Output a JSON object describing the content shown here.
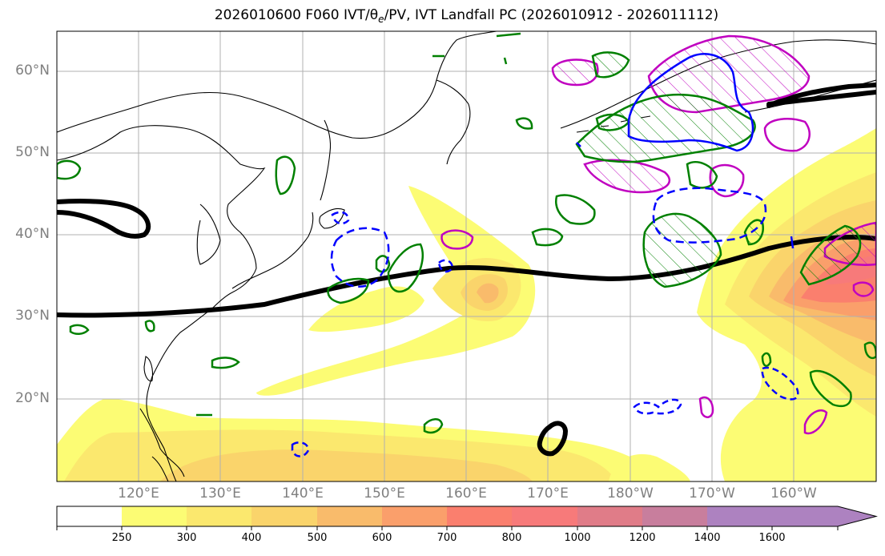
{
  "figure": {
    "title_main": "2026010600 F060 IVT/",
    "title_theta": "θ",
    "title_theta_sub": "e",
    "title_rest": "/PV, IVT Landfall PC (2026010912 - 2026011112)"
  },
  "map": {
    "lat_labels": [
      "60°N",
      "50°N",
      "40°N",
      "30°N",
      "20°N"
    ],
    "lon_labels": [
      "120°E",
      "130°E",
      "140°E",
      "150°E",
      "160°E",
      "170°E",
      "180°W",
      "170°W",
      "160°W"
    ]
  },
  "colorbar": {
    "labels": [
      "250",
      "300",
      "400",
      "500",
      "600",
      "700",
      "800",
      "1000",
      "1200",
      "1400",
      "1600"
    ],
    "colors": [
      "#ffffff",
      "#fcfc74",
      "#fbe86e",
      "#fad46b",
      "#f9bb6b",
      "#fa9f6b",
      "#fa7f6e",
      "#f77a7a",
      "#e07c88",
      "#c87e9d",
      "#ad82c0"
    ]
  },
  "legend_colors": {
    "equivalent_potential_temperature": "#000000",
    "pv_green": "#008000",
    "pv_blue": "#0000ff",
    "pv_magenta": "#c000c0"
  }
}
